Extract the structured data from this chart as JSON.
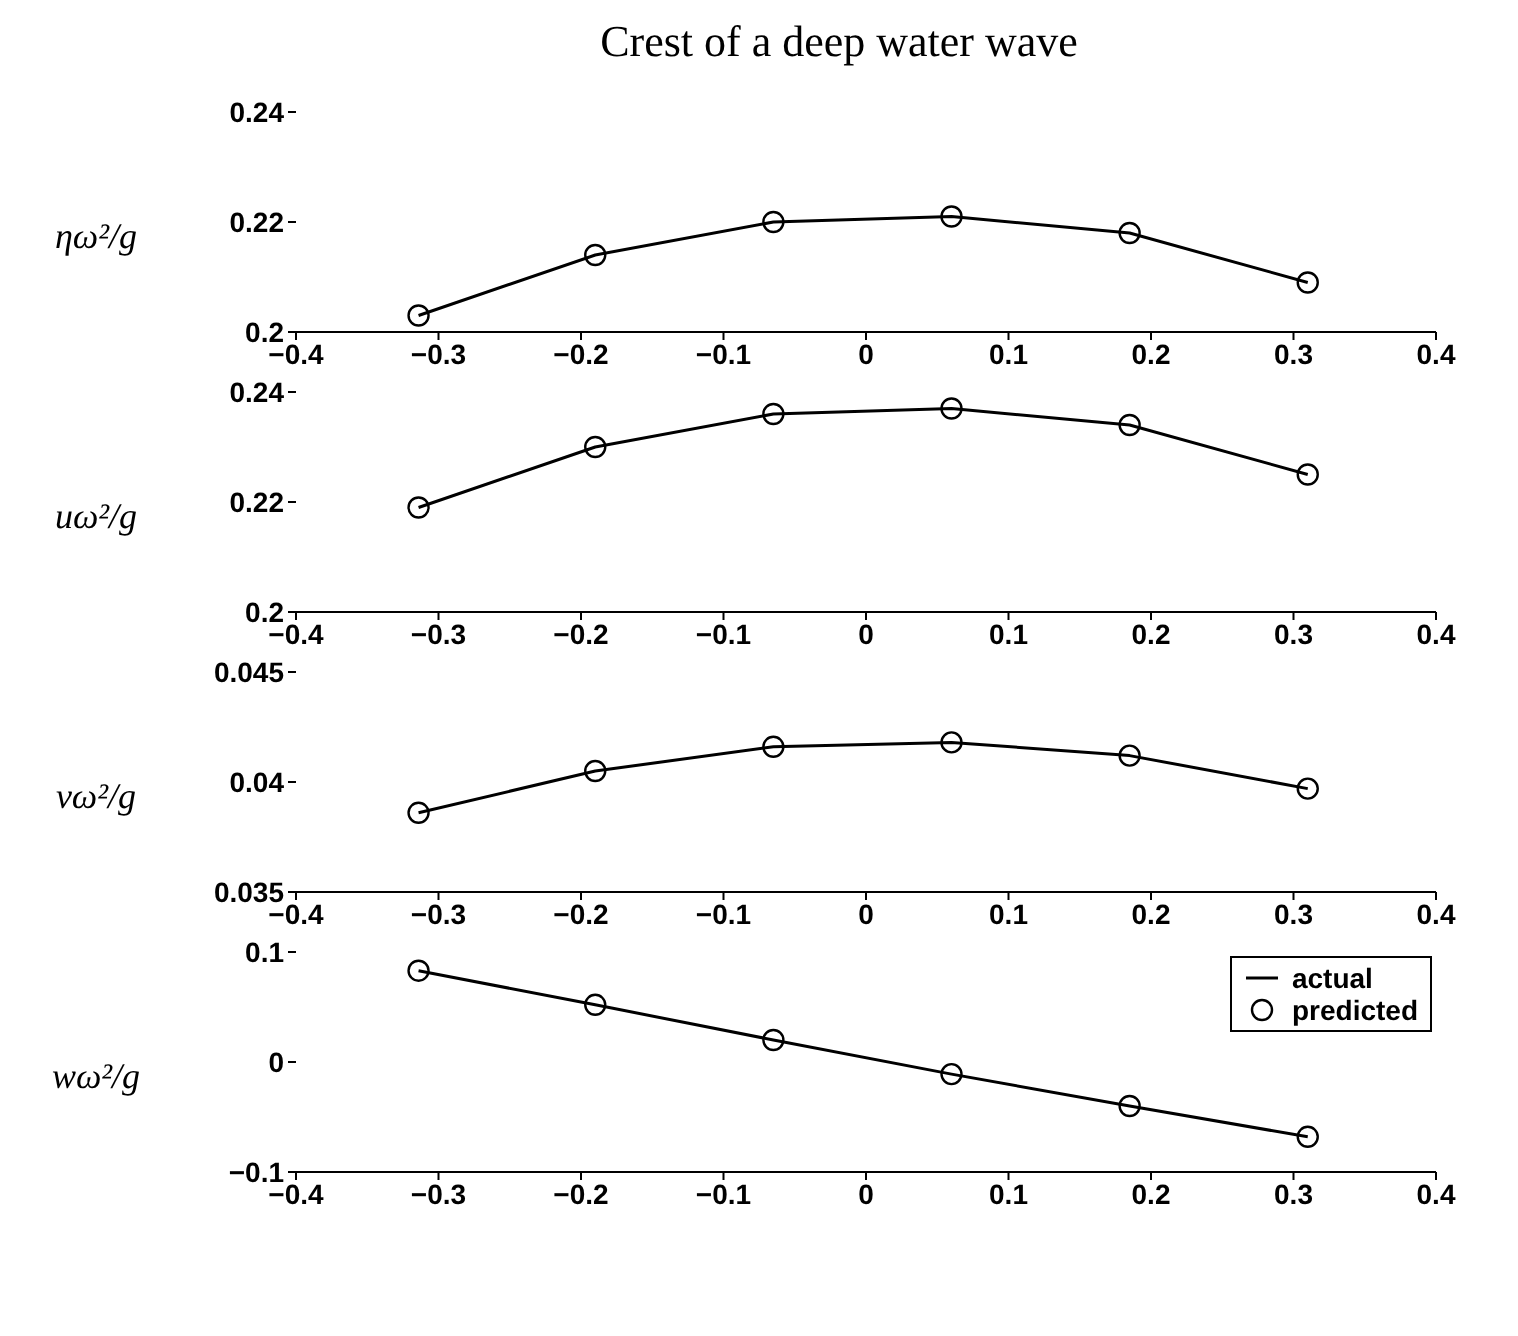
{
  "chart_data": [
    {
      "type": "line",
      "title": "Crest of a deep water wave",
      "ylabel": "ηω²/g",
      "x": [
        -0.314,
        -0.19,
        -0.065,
        0.06,
        0.185,
        0.31
      ],
      "xlim": [
        -0.4,
        0.4
      ],
      "xticks": [
        -0.4,
        -0.3,
        -0.2,
        -0.1,
        0,
        0.1,
        0.2,
        0.3,
        0.4
      ],
      "ylim": [
        0.2,
        0.24
      ],
      "yticks": [
        0.2,
        0.22,
        0.24
      ],
      "legend": false,
      "series": [
        {
          "type": "line",
          "color": "#000000",
          "values": [
            0.203,
            0.214,
            0.22,
            0.221,
            0.218,
            0.209
          ]
        },
        {
          "type": "scatter",
          "marker": "circle",
          "color": "#000000",
          "values": [
            0.203,
            0.214,
            0.22,
            0.221,
            0.218,
            0.209
          ]
        }
      ]
    },
    {
      "type": "line",
      "ylabel": "uω²/g",
      "x": [
        -0.314,
        -0.19,
        -0.065,
        0.06,
        0.185,
        0.31
      ],
      "xlim": [
        -0.4,
        0.4
      ],
      "xticks": [
        -0.4,
        -0.3,
        -0.2,
        -0.1,
        0,
        0.1,
        0.2,
        0.3,
        0.4
      ],
      "ylim": [
        0.2,
        0.24
      ],
      "yticks": [
        0.2,
        0.22,
        0.24
      ],
      "legend": false,
      "series": [
        {
          "type": "line",
          "color": "#000000",
          "values": [
            0.219,
            0.23,
            0.236,
            0.237,
            0.234,
            0.225
          ]
        },
        {
          "type": "scatter",
          "marker": "circle",
          "color": "#000000",
          "values": [
            0.219,
            0.23,
            0.236,
            0.237,
            0.234,
            0.225
          ]
        }
      ]
    },
    {
      "type": "line",
      "ylabel": "vω²/g",
      "x": [
        -0.314,
        -0.19,
        -0.065,
        0.06,
        0.185,
        0.31
      ],
      "xlim": [
        -0.4,
        0.4
      ],
      "xticks": [
        -0.4,
        -0.3,
        -0.2,
        -0.1,
        0,
        0.1,
        0.2,
        0.3,
        0.4
      ],
      "ylim": [
        0.035,
        0.045
      ],
      "yticks": [
        0.035,
        0.04,
        0.045
      ],
      "legend": false,
      "series": [
        {
          "type": "line",
          "color": "#000000",
          "values": [
            0.0386,
            0.0405,
            0.0416,
            0.0418,
            0.0412,
            0.0397
          ]
        },
        {
          "type": "scatter",
          "marker": "circle",
          "color": "#000000",
          "values": [
            0.0386,
            0.0405,
            0.0416,
            0.0418,
            0.0412,
            0.0397
          ]
        }
      ]
    },
    {
      "type": "line",
      "ylabel": "wω²/g",
      "x": [
        -0.314,
        -0.19,
        -0.065,
        0.06,
        0.185,
        0.31
      ],
      "xlim": [
        -0.4,
        0.4
      ],
      "xticks": [
        -0.4,
        -0.3,
        -0.2,
        -0.1,
        0,
        0.1,
        0.2,
        0.3,
        0.4
      ],
      "ylim": [
        -0.1,
        0.1
      ],
      "yticks": [
        -0.1,
        0,
        0.1
      ],
      "legend": "top right",
      "series": [
        {
          "type": "line",
          "name": "actual",
          "color": "#000000",
          "values": [
            0.083,
            0.052,
            0.02,
            -0.011,
            -0.04,
            -0.068
          ]
        },
        {
          "type": "scatter",
          "name": "predicted",
          "marker": "circle",
          "color": "#000000",
          "values": [
            0.083,
            0.052,
            0.02,
            -0.011,
            -0.04,
            -0.068
          ]
        }
      ]
    }
  ]
}
